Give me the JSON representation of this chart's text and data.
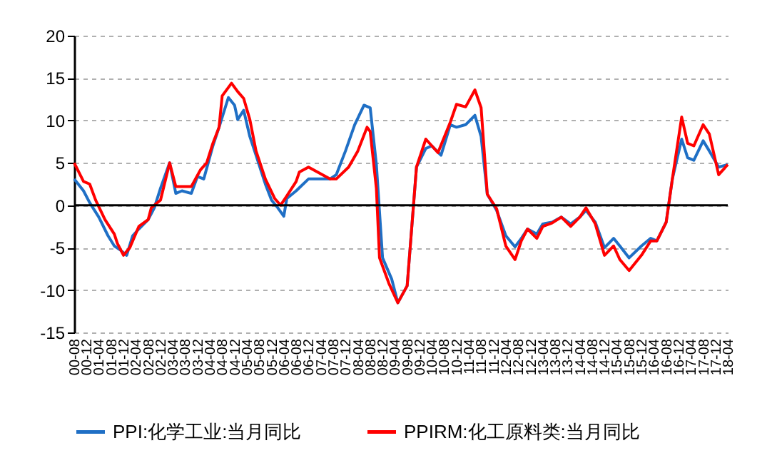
{
  "chart_data": {
    "type": "line",
    "xlim": [
      "2000-08",
      "2018-04"
    ],
    "ylim": [
      -15,
      20
    ],
    "yticks": [
      -15,
      -10,
      -5,
      0,
      5,
      10,
      15,
      20
    ],
    "grid": "y",
    "legend": "bottom",
    "xticks": [
      {
        "value": "2000-08",
        "label": "00-08"
      },
      {
        "value": "2000-12",
        "label": "00-12"
      },
      {
        "value": "2001-04",
        "label": "01-04"
      },
      {
        "value": "2001-08",
        "label": "01-08"
      },
      {
        "value": "2001-12",
        "label": "01-12"
      },
      {
        "value": "2002-04",
        "label": "02-04"
      },
      {
        "value": "2002-08",
        "label": "02-08"
      },
      {
        "value": "2002-12",
        "label": "02-12"
      },
      {
        "value": "2003-04",
        "label": "03-04"
      },
      {
        "value": "2003-08",
        "label": "03-08"
      },
      {
        "value": "2003-12",
        "label": "03-12"
      },
      {
        "value": "2004-04",
        "label": "04-04"
      },
      {
        "value": "2004-08",
        "label": "04-08"
      },
      {
        "value": "2004-12",
        "label": "04-12"
      },
      {
        "value": "2005-04",
        "label": "05-04"
      },
      {
        "value": "2005-08",
        "label": "05-08"
      },
      {
        "value": "2005-12",
        "label": "05-12"
      },
      {
        "value": "2006-04",
        "label": "06-04"
      },
      {
        "value": "2006-08",
        "label": "06-08"
      },
      {
        "value": "2006-12",
        "label": "06-12"
      },
      {
        "value": "2007-04",
        "label": "07-04"
      },
      {
        "value": "2007-08",
        "label": "07-08"
      },
      {
        "value": "2007-12",
        "label": "07-12"
      },
      {
        "value": "2008-04",
        "label": "08-04"
      },
      {
        "value": "2008-08",
        "label": "08-08"
      },
      {
        "value": "2008-12",
        "label": "08-12"
      },
      {
        "value": "2009-04",
        "label": "09-04"
      },
      {
        "value": "2009-08",
        "label": "09-08"
      },
      {
        "value": "2009-12",
        "label": "09-12"
      },
      {
        "value": "2010-04",
        "label": "10-04"
      },
      {
        "value": "2010-08",
        "label": "10-08"
      },
      {
        "value": "2010-12",
        "label": "10-12"
      },
      {
        "value": "2011-04",
        "label": "11-04"
      },
      {
        "value": "2011-08",
        "label": "11-08"
      },
      {
        "value": "2011-12",
        "label": "11-12"
      },
      {
        "value": "2012-04",
        "label": "12-04"
      },
      {
        "value": "2012-08",
        "label": "12-08"
      },
      {
        "value": "2012-12",
        "label": "12-12"
      },
      {
        "value": "2013-04",
        "label": "13-04"
      },
      {
        "value": "2013-08",
        "label": "13-08"
      },
      {
        "value": "2013-12",
        "label": "13-12"
      },
      {
        "value": "2014-04",
        "label": "14-04"
      },
      {
        "value": "2014-08",
        "label": "14-08"
      },
      {
        "value": "2014-12",
        "label": "14-12"
      },
      {
        "value": "2015-04",
        "label": "15-04"
      },
      {
        "value": "2015-08",
        "label": "15-08"
      },
      {
        "value": "2015-12",
        "label": "15-12"
      },
      {
        "value": "2016-04",
        "label": "16-04"
      },
      {
        "value": "2016-08",
        "label": "16-08"
      },
      {
        "value": "2016-12",
        "label": "16-12"
      },
      {
        "value": "2017-04",
        "label": "17-04"
      },
      {
        "value": "2017-08",
        "label": "17-08"
      },
      {
        "value": "2017-12",
        "label": "17-12"
      },
      {
        "value": "2018-04",
        "label": "18-04"
      }
    ],
    "ref_lines": [
      {
        "axis": "y",
        "value": 0,
        "color": "#000000"
      }
    ],
    "series": [
      {
        "name": "PPI:化学工业:当月同比",
        "color": "#1f6fc5",
        "x": [
          "2000-08",
          "2000-11",
          "2001-01",
          "2001-04",
          "2001-07",
          "2001-09",
          "2001-11",
          "2002-01",
          "2002-03",
          "2002-05",
          "2002-08",
          "2002-10",
          "2002-12",
          "2003-03",
          "2003-05",
          "2003-07",
          "2003-10",
          "2003-12",
          "2004-02",
          "2004-05",
          "2004-07",
          "2004-10",
          "2004-12",
          "2005-01",
          "2005-03",
          "2005-05",
          "2005-07",
          "2005-10",
          "2005-12",
          "2006-02",
          "2006-04",
          "2006-05",
          "2006-08",
          "2006-12",
          "2007-03",
          "2007-07",
          "2007-09",
          "2007-12",
          "2008-03",
          "2008-06",
          "2008-08",
          "2008-10",
          "2008-12",
          "2009-03",
          "2009-05",
          "2009-08",
          "2009-11",
          "2010-02",
          "2010-04",
          "2010-07",
          "2010-10",
          "2010-12",
          "2011-03",
          "2011-06",
          "2011-08",
          "2011-10",
          "2012-01",
          "2012-04",
          "2012-07",
          "2012-09",
          "2012-11",
          "2013-02",
          "2013-04",
          "2013-07",
          "2013-10",
          "2014-01",
          "2014-04",
          "2014-06",
          "2014-09",
          "2014-12",
          "2015-03",
          "2015-05",
          "2015-08",
          "2015-12",
          "2016-03",
          "2016-05",
          "2016-08",
          "2016-10",
          "2017-01",
          "2017-03",
          "2017-05",
          "2017-08",
          "2017-10",
          "2018-01",
          "2018-04"
        ],
        "values": [
          3.1,
          1.7,
          0.3,
          -1.4,
          -3.6,
          -4.8,
          -5.3,
          -5.9,
          -3.6,
          -2.8,
          -1.7,
          -0.3,
          2.0,
          5.0,
          1.4,
          1.7,
          1.4,
          3.4,
          3.1,
          7.0,
          9.2,
          12.7,
          11.8,
          10.1,
          11.2,
          8.1,
          5.9,
          2.5,
          0.6,
          -0.3,
          -1.3,
          0.8,
          1.7,
          3.1,
          3.1,
          3.1,
          3.6,
          6.4,
          9.5,
          11.8,
          11.5,
          4.8,
          -6.2,
          -8.7,
          -11.5,
          -9.5,
          4.5,
          6.7,
          7.0,
          5.9,
          9.5,
          9.2,
          9.5,
          10.6,
          8.1,
          1.3,
          -0.6,
          -3.6,
          -4.9,
          -3.9,
          -2.8,
          -3.4,
          -2.2,
          -2.0,
          -1.4,
          -2.2,
          -1.4,
          -0.6,
          -2.0,
          -5.0,
          -3.9,
          -4.8,
          -6.2,
          -4.8,
          -3.9,
          -4.2,
          -2.0,
          3.1,
          7.8,
          5.6,
          5.3,
          7.6,
          6.4,
          4.5,
          4.8
        ]
      },
      {
        "name": "PPIRM:化工原料类:当月同比",
        "color": "#ff0000",
        "x": [
          "2000-08",
          "2000-11",
          "2001-01",
          "2001-03",
          "2001-06",
          "2001-09",
          "2001-10",
          "2001-12",
          "2002-02",
          "2002-05",
          "2002-08",
          "2002-09",
          "2002-12",
          "2003-03",
          "2003-05",
          "2003-07",
          "2003-10",
          "2004-01",
          "2004-03",
          "2004-05",
          "2004-07",
          "2004-08",
          "2004-11",
          "2005-01",
          "2005-03",
          "2005-05",
          "2005-07",
          "2005-10",
          "2006-01",
          "2006-03",
          "2006-05",
          "2006-08",
          "2006-09",
          "2006-12",
          "2007-03",
          "2007-07",
          "2007-09",
          "2008-01",
          "2008-04",
          "2008-07",
          "2008-08",
          "2008-10",
          "2008-11",
          "2009-02",
          "2009-05",
          "2009-08",
          "2009-11",
          "2010-02",
          "2010-06",
          "2010-10",
          "2010-12",
          "2011-03",
          "2011-06",
          "2011-08",
          "2011-10",
          "2012-01",
          "2012-04",
          "2012-07",
          "2012-09",
          "2012-11",
          "2013-02",
          "2013-04",
          "2013-07",
          "2013-10",
          "2014-01",
          "2014-04",
          "2014-06",
          "2014-09",
          "2014-12",
          "2015-03",
          "2015-05",
          "2015-08",
          "2015-12",
          "2016-03",
          "2016-05",
          "2016-08",
          "2016-10",
          "2017-01",
          "2017-03",
          "2017-05",
          "2017-08",
          "2017-10",
          "2018-01",
          "2018-04"
        ],
        "values": [
          5.0,
          2.8,
          2.5,
          0.6,
          -1.7,
          -3.4,
          -4.5,
          -5.9,
          -5.0,
          -2.5,
          -1.7,
          -0.3,
          0.6,
          5.0,
          2.2,
          2.2,
          2.2,
          4.2,
          5.0,
          7.3,
          9.2,
          12.9,
          14.4,
          13.4,
          12.6,
          10.1,
          6.4,
          3.1,
          0.8,
          0.0,
          1.1,
          2.8,
          3.9,
          4.5,
          3.9,
          3.1,
          3.1,
          4.5,
          6.4,
          9.2,
          8.7,
          2.0,
          -6.2,
          -9.2,
          -11.5,
          -9.5,
          4.5,
          7.8,
          6.2,
          9.8,
          11.9,
          11.6,
          13.6,
          11.5,
          1.3,
          -0.4,
          -4.8,
          -6.4,
          -4.2,
          -2.8,
          -3.9,
          -2.5,
          -2.1,
          -1.4,
          -2.5,
          -1.4,
          -0.3,
          -2.2,
          -5.9,
          -4.8,
          -6.4,
          -7.7,
          -5.9,
          -4.2,
          -4.2,
          -2.0,
          3.1,
          10.4,
          7.3,
          7.0,
          9.5,
          8.4,
          3.6,
          4.8
        ]
      }
    ]
  }
}
